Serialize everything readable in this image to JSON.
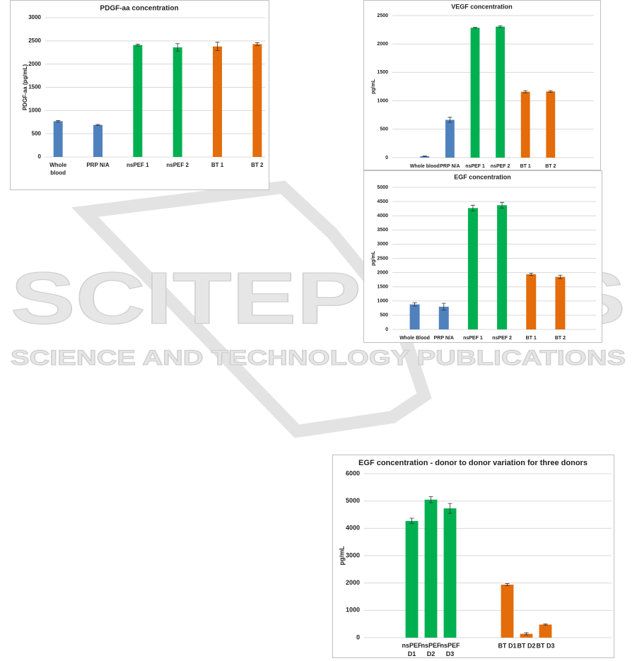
{
  "watermark": {
    "title": "SCITEPRESS",
    "subtitle": "SCIENCE AND TECHNOLOGY PUBLICATIONS"
  },
  "chart_data": [
    {
      "type": "bar",
      "title": "PDGF-aa concentration",
      "y_label": "PDGF-aa (pg/mL)",
      "categories": [
        "Whole blood",
        "PRP N/A",
        "nsPEF 1",
        "nsPEF 2",
        "BT 1",
        "BT 2"
      ],
      "values": [
        770,
        690,
        2410,
        2360,
        2380,
        2430
      ],
      "errors": [
        15,
        10,
        20,
        80,
        90,
        30
      ],
      "colors": [
        "#4f81bd",
        "#4f81bd",
        "#00b050",
        "#00b050",
        "#e46c0a",
        "#e46c0a"
      ],
      "ylim": [
        0,
        3000
      ],
      "yticks": [
        0,
        500,
        1000,
        1500,
        2000,
        2500,
        3000
      ],
      "grid": true
    },
    {
      "type": "bar",
      "title": "VEGF concentration",
      "y_label": "pg/mL",
      "categories": [
        "Whole blood",
        "PRP N/A",
        "nsPEF 1",
        "nsPEF 2",
        "BT 1",
        "BT 2"
      ],
      "values": [
        25,
        665,
        2285,
        2305,
        1160,
        1165
      ],
      "errors": [
        5,
        45,
        10,
        15,
        20,
        15
      ],
      "colors": [
        "#4f81bd",
        "#4f81bd",
        "#00b050",
        "#00b050",
        "#e46c0a",
        "#e46c0a"
      ],
      "ylim": [
        0,
        2500
      ],
      "yticks": [
        0,
        500,
        1000,
        1500,
        2000,
        2500
      ],
      "grid": true
    },
    {
      "type": "bar",
      "title": "EGF concentration",
      "y_label": "pg/mL",
      "categories": [
        "Whole Blood",
        "PRP N/A",
        "nsPEF 1",
        "nsPEF 2",
        "BT 1",
        "BT 2"
      ],
      "values": [
        880,
        800,
        4270,
        4370,
        1940,
        1850
      ],
      "errors": [
        60,
        120,
        100,
        100,
        40,
        60
      ],
      "colors": [
        "#4f81bd",
        "#4f81bd",
        "#00b050",
        "#00b050",
        "#e46c0a",
        "#e46c0a"
      ],
      "ylim": [
        0,
        5000
      ],
      "yticks": [
        0,
        500,
        1000,
        1500,
        2000,
        2500,
        3000,
        3500,
        4000,
        4500,
        5000
      ],
      "grid": true
    },
    {
      "type": "bar",
      "title": "EGF concentration - donor to donor variation for three donors",
      "y_label": "pg/mL",
      "categories": [
        null,
        null,
        "nsPEF D1",
        "nsPEF D2",
        "nsPEF D3",
        null,
        null,
        "BT D1",
        "BT D2",
        "BT D3",
        null,
        null,
        null
      ],
      "values": [
        null,
        null,
        4270,
        5050,
        4730,
        null,
        null,
        1940,
        140,
        480,
        null,
        null,
        null
      ],
      "errors": [
        null,
        null,
        100,
        110,
        180,
        null,
        null,
        40,
        40,
        20,
        null,
        null,
        null
      ],
      "colors": [
        null,
        null,
        "#00b050",
        "#00b050",
        "#00b050",
        null,
        null,
        "#e46c0a",
        "#e46c0a",
        "#e46c0a",
        null,
        null,
        null
      ],
      "ylim": [
        0,
        6000
      ],
      "yticks": [
        0,
        1000,
        2000,
        3000,
        4000,
        5000,
        6000
      ],
      "grid": true
    }
  ]
}
